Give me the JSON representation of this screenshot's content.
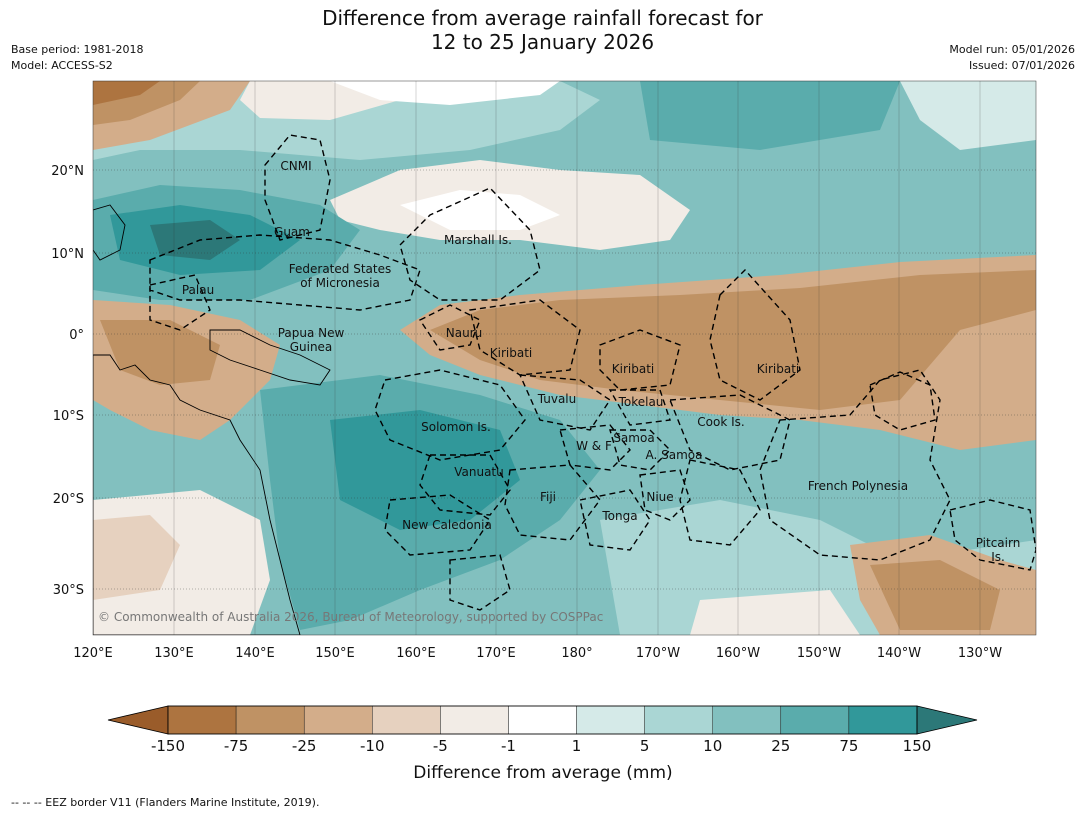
{
  "title": {
    "line1": "Difference from average rainfall forecast for",
    "line2": "12 to 25 January 2026"
  },
  "meta": {
    "base_period": "Base period: 1981-2018",
    "model": "Model: ACCESS-S2",
    "model_run": "Model run: 05/01/2026",
    "issued": "Issued: 07/01/2026"
  },
  "axes": {
    "lon_labels": [
      "120°E",
      "130°E",
      "140°E",
      "150°E",
      "160°E",
      "170°E",
      "180°",
      "170°W",
      "160°W",
      "150°W",
      "140°W",
      "130°W"
    ],
    "lat_labels": [
      "20°N",
      "10°N",
      "0°",
      "10°S",
      "20°S",
      "30°S"
    ]
  },
  "regions": [
    {
      "name": "CNMI",
      "lines": [
        "CNMI"
      ]
    },
    {
      "name": "Guam",
      "lines": [
        "Guam"
      ]
    },
    {
      "name": "Marshall Is.",
      "lines": [
        "Marshall Is."
      ]
    },
    {
      "name": "Federated States of Micronesia",
      "lines": [
        "Federated States",
        "of Micronesia"
      ]
    },
    {
      "name": "Palau",
      "lines": [
        "Palau"
      ]
    },
    {
      "name": "Papua New Guinea",
      "lines": [
        "Papua New",
        "Guinea"
      ]
    },
    {
      "name": "Nauru",
      "lines": [
        "Nauru"
      ]
    },
    {
      "name": "Kiribati (west)",
      "lines": [
        "Kiribati"
      ]
    },
    {
      "name": "Kiribati (central)",
      "lines": [
        "Kiribati"
      ]
    },
    {
      "name": "Kiribati (east)",
      "lines": [
        "Kiribati"
      ]
    },
    {
      "name": "Tuvalu",
      "lines": [
        "Tuvalu"
      ]
    },
    {
      "name": "Tokelau",
      "lines": [
        "Tokelau"
      ]
    },
    {
      "name": "Cook Is.",
      "lines": [
        "Cook Is."
      ]
    },
    {
      "name": "Solomon Is.",
      "lines": [
        "Solomon Is."
      ]
    },
    {
      "name": "Samoa",
      "lines": [
        "Samoa"
      ]
    },
    {
      "name": "W & F",
      "lines": [
        "W & F"
      ]
    },
    {
      "name": "A. Samoa",
      "lines": [
        "A. Samoa"
      ]
    },
    {
      "name": "Vanuatu",
      "lines": [
        "Vanuatu"
      ]
    },
    {
      "name": "French Polynesia",
      "lines": [
        "French Polynesia"
      ]
    },
    {
      "name": "Fiji",
      "lines": [
        "Fiji"
      ]
    },
    {
      "name": "Niue",
      "lines": [
        "Niue"
      ]
    },
    {
      "name": "Tonga",
      "lines": [
        "Tonga"
      ]
    },
    {
      "name": "New Caledonia",
      "lines": [
        "New Caledonia"
      ]
    },
    {
      "name": "Pitcairn Is.",
      "lines": [
        "Pitcairn",
        "Is."
      ]
    }
  ],
  "copyright": "© Commonwealth of Australia 2026, Bureau of Meteorology, supported by COSPPac",
  "colorbar": {
    "title": "Difference from average (mm)",
    "ticks": [
      "-150",
      "-75",
      "-25",
      "-10",
      "-5",
      "-1",
      "1",
      "5",
      "10",
      "25",
      "75",
      "150"
    ],
    "colors": [
      "#9a5c2a",
      "#ad7440",
      "#bf9264",
      "#d3ad8a",
      "#e6d1bf",
      "#f2ece6",
      "#ffffff",
      "#d5eae8",
      "#aad6d4",
      "#82c0bf",
      "#5aacac",
      "#31989a",
      "#2c7878"
    ]
  },
  "footer": "--  --  -- EEZ border V11 (Flanders Marine Institute, 2019)."
}
